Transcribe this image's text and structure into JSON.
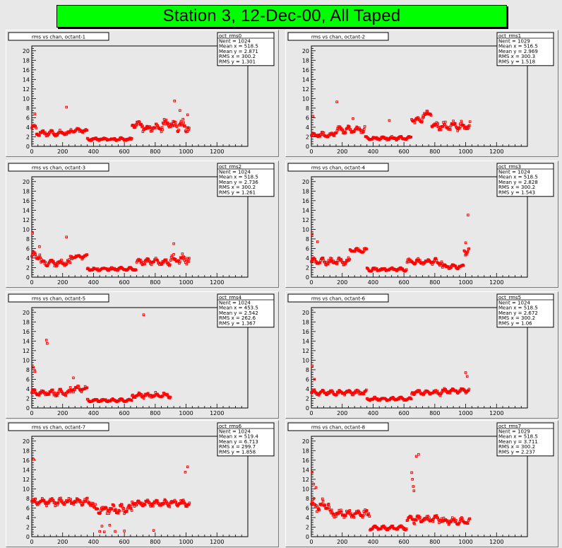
{
  "page": {
    "title": "Station 3, 12-Dec-00, All Taped"
  },
  "chart_data": [
    {
      "type": "scatter",
      "title": "rms vs chan, octant-1",
      "x_range": [
        0,
        1400
      ],
      "ylim": [
        0,
        21
      ],
      "x_ticks": [
        0,
        200,
        400,
        600,
        800,
        1000,
        1200
      ],
      "y_ticks": [
        0,
        2,
        4,
        6,
        8,
        10,
        12,
        14,
        16,
        18,
        20
      ],
      "stats": {
        "name": "oct_rms0",
        "lines": [
          "Nent = 1024",
          "Mean x = 518.5",
          "Mean y = 2.871",
          "RMS x = 300.2",
          "RMS y = 1.301"
        ]
      },
      "segments": [
        [
          0,
          30,
          4.0,
          0.6
        ],
        [
          30,
          250,
          2.8,
          0.7
        ],
        [
          250,
          360,
          3.3,
          0.5
        ],
        [
          360,
          650,
          1.5,
          0.35
        ],
        [
          650,
          720,
          4.6,
          0.7
        ],
        [
          720,
          850,
          3.8,
          0.9
        ],
        [
          850,
          900,
          4.8,
          1.0
        ],
        [
          900,
          1024,
          4.3,
          1.5
        ]
      ],
      "outliers": [
        [
          225,
          8.2
        ],
        [
          925,
          9.5
        ],
        [
          20,
          6.8
        ],
        [
          960,
          7.5
        ],
        [
          1010,
          6.6
        ]
      ]
    },
    {
      "type": "scatter",
      "title": "rms vs chan, octant-2",
      "x_range": [
        0,
        1400
      ],
      "ylim": [
        0,
        21
      ],
      "x_ticks": [
        0,
        200,
        400,
        600,
        800,
        1000,
        1200
      ],
      "y_ticks": [
        0,
        2,
        4,
        6,
        8,
        10,
        12,
        14,
        16,
        18,
        20
      ],
      "stats": {
        "name": "oct_rms1",
        "lines": [
          "Nent = 1029",
          "Mean x = 516.5",
          "Mean y = 2.969",
          "RMS x = 300.3",
          "RMS y = 1.518"
        ]
      },
      "segments": [
        [
          0,
          150,
          2.4,
          0.6
        ],
        [
          150,
          350,
          3.5,
          1.0
        ],
        [
          350,
          650,
          1.7,
          0.4
        ],
        [
          650,
          720,
          5.5,
          0.8
        ],
        [
          720,
          780,
          6.8,
          0.9
        ],
        [
          780,
          900,
          4.3,
          1.0
        ],
        [
          900,
          1030,
          4.2,
          1.2
        ]
      ],
      "outliers": [
        [
          165,
          9.3
        ],
        [
          10,
          6.3
        ],
        [
          270,
          5.8
        ],
        [
          505,
          5.4
        ]
      ]
    },
    {
      "type": "scatter",
      "title": "rms vs chan, octant-3",
      "x_range": [
        0,
        1400
      ],
      "ylim": [
        0,
        21
      ],
      "x_ticks": [
        0,
        200,
        400,
        600,
        800,
        1000,
        1200
      ],
      "y_ticks": [
        0,
        2,
        4,
        6,
        8,
        10,
        12,
        14,
        16,
        18,
        20
      ],
      "stats": {
        "name": "oct_rms2",
        "lines": [
          "Nent = 1024",
          "Mean x = 518.5",
          "Mean y = 2.736",
          "RMS x = 300.2",
          "RMS y = 1.261"
        ]
      },
      "segments": [
        [
          0,
          60,
          4.5,
          1.2
        ],
        [
          60,
          250,
          3.0,
          0.8
        ],
        [
          250,
          360,
          4.3,
          0.6
        ],
        [
          360,
          680,
          1.7,
          0.4
        ],
        [
          680,
          900,
          3.2,
          0.8
        ],
        [
          900,
          1024,
          3.8,
          1.2
        ]
      ],
      "outliers": [
        [
          225,
          8.4
        ],
        [
          5,
          9.2
        ],
        [
          920,
          7.0
        ],
        [
          50,
          6.4
        ]
      ]
    },
    {
      "type": "scatter",
      "title": "rms vs chan, octant-4",
      "x_range": [
        0,
        1400
      ],
      "ylim": [
        0,
        21
      ],
      "x_ticks": [
        0,
        200,
        400,
        600,
        800,
        1000,
        1200
      ],
      "y_ticks": [
        0,
        2,
        4,
        6,
        8,
        10,
        12,
        14,
        16,
        18,
        20
      ],
      "stats": {
        "name": "oct_rms3",
        "lines": [
          "Nent = 1024",
          "Mean x = 518.5",
          "Mean y = 2.828",
          "RMS x = 300.2",
          "RMS y = 1.543"
        ]
      },
      "segments": [
        [
          0,
          250,
          3.3,
          0.8
        ],
        [
          250,
          360,
          5.6,
          0.6
        ],
        [
          360,
          620,
          1.6,
          0.4
        ],
        [
          620,
          850,
          3.2,
          0.8
        ],
        [
          850,
          990,
          2.2,
          0.5
        ],
        [
          990,
          1024,
          5.5,
          1.0
        ]
      ],
      "outliers": [
        [
          1015,
          13.0
        ],
        [
          5,
          9.0
        ],
        [
          40,
          7.4
        ],
        [
          1000,
          7.2
        ]
      ]
    },
    {
      "type": "scatter",
      "title": "rms vs chan, octant-5",
      "x_range": [
        0,
        1400
      ],
      "ylim": [
        0,
        21
      ],
      "x_ticks": [
        0,
        200,
        400,
        600,
        800,
        1000,
        1200
      ],
      "y_ticks": [
        0,
        2,
        4,
        6,
        8,
        10,
        12,
        14,
        16,
        18,
        20
      ],
      "stats": {
        "name": "oct_rms4",
        "lines": [
          "Nent = 1024",
          "Mean x = 453.5",
          "Mean y = 2.542",
          "RMS x = 262.6",
          "RMS y = 1.367"
        ]
      },
      "segments": [
        [
          0,
          250,
          3.2,
          0.8
        ],
        [
          250,
          360,
          4.0,
          0.7
        ],
        [
          360,
          650,
          1.6,
          0.35
        ],
        [
          650,
          900,
          2.7,
          0.7
        ]
      ],
      "outliers": [
        [
          725,
          19.5
        ],
        [
          95,
          14.2
        ],
        [
          100,
          13.5
        ],
        [
          10,
          8.5
        ],
        [
          20,
          7.6
        ],
        [
          270,
          6.3
        ]
      ]
    },
    {
      "type": "scatter",
      "title": "rms vs chan, octant-6",
      "x_range": [
        0,
        1400
      ],
      "ylim": [
        0,
        21
      ],
      "x_ticks": [
        0,
        200,
        400,
        600,
        800,
        1000,
        1200
      ],
      "y_ticks": [
        0,
        2,
        4,
        6,
        8,
        10,
        12,
        14,
        16,
        18,
        20
      ],
      "stats": {
        "name": "oct_rms5",
        "lines": [
          "Nent = 1024",
          "Mean x = 518.5",
          "Mean y = 2.672",
          "RMS x = 300.2",
          "RMS y = 1.06"
        ]
      },
      "segments": [
        [
          0,
          360,
          3.2,
          0.6
        ],
        [
          360,
          650,
          1.9,
          0.4
        ],
        [
          650,
          850,
          3.2,
          0.6
        ],
        [
          850,
          1024,
          3.6,
          0.6
        ]
      ],
      "outliers": [
        [
          5,
          8.8
        ],
        [
          1000,
          7.4
        ],
        [
          20,
          6.0
        ],
        [
          1010,
          6.6
        ]
      ]
    },
    {
      "type": "scatter",
      "title": "rms vs chan, octant-7",
      "x_range": [
        0,
        1400
      ],
      "ylim": [
        0,
        21
      ],
      "x_ticks": [
        0,
        200,
        400,
        600,
        800,
        1000,
        1200
      ],
      "y_ticks": [
        0,
        2,
        4,
        6,
        8,
        10,
        12,
        14,
        16,
        18,
        20
      ],
      "stats": {
        "name": "oct_rms6",
        "lines": [
          "Nent = 1024",
          "Mean x = 519.4",
          "Mean y = 6.713",
          "RMS x = 299.7",
          "RMS y = 1.858"
        ]
      },
      "segments": [
        [
          0,
          400,
          7.3,
          0.9
        ],
        [
          400,
          650,
          5.7,
          1.1
        ],
        [
          650,
          1024,
          7.0,
          0.8
        ]
      ],
      "outliers": [
        [
          10,
          16.2
        ],
        [
          1010,
          14.6
        ],
        [
          995,
          13.5
        ],
        [
          440,
          1.1
        ],
        [
          470,
          1.0
        ],
        [
          540,
          1.1
        ],
        [
          600,
          1.2
        ],
        [
          790,
          1.3
        ],
        [
          505,
          2.4
        ],
        [
          455,
          2.2
        ]
      ]
    },
    {
      "type": "scatter",
      "title": "rms vs chan, octant-8",
      "x_range": [
        0,
        1400
      ],
      "ylim": [
        0,
        21
      ],
      "x_ticks": [
        0,
        200,
        400,
        600,
        800,
        1000,
        1200
      ],
      "y_ticks": [
        0,
        2,
        4,
        6,
        8,
        10,
        12,
        14,
        16,
        18,
        20
      ],
      "stats": {
        "name": "oct_rms7",
        "lines": [
          "Nent = 1029",
          "Mean x = 518.5",
          "Mean y = 3.711",
          "RMS x = 300.2",
          "RMS y = 2.237"
        ]
      },
      "segments": [
        [
          0,
          120,
          6.5,
          1.6
        ],
        [
          120,
          380,
          4.8,
          1.0
        ],
        [
          380,
          620,
          1.8,
          0.5
        ],
        [
          620,
          850,
          3.6,
          1.0
        ],
        [
          850,
          1030,
          3.3,
          0.8
        ]
      ],
      "outliers": [
        [
          695,
          17.2
        ],
        [
          680,
          16.8
        ],
        [
          650,
          13.4
        ],
        [
          655,
          12.0
        ],
        [
          660,
          10.5
        ],
        [
          665,
          9.6
        ],
        [
          5,
          13.5
        ],
        [
          15,
          11.0
        ],
        [
          30,
          10.3
        ]
      ]
    }
  ]
}
